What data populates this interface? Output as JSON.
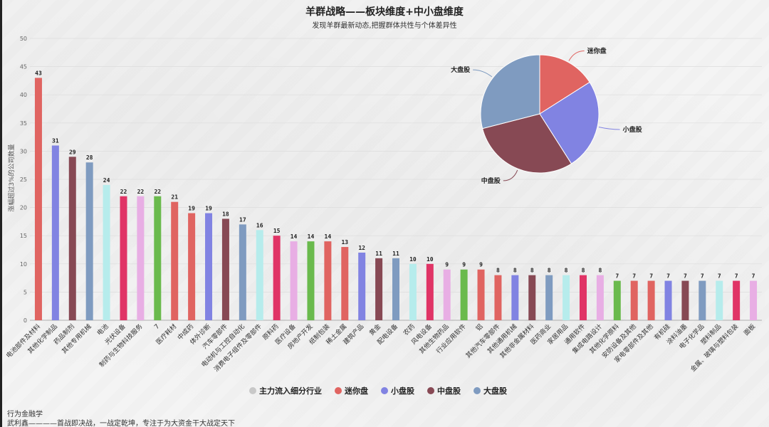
{
  "colors": {
    "inflow_gray": "#c8c8c8",
    "mini_red": "#e06461",
    "small_blue": "#8183e2",
    "mid_maroon": "#874954",
    "large_steel": "#7f9bc0",
    "cyan": "#b6ecec",
    "pink": "#e8aee4",
    "magenta": "#e03466",
    "green": "#6aba4d"
  },
  "chart_data": [
    {
      "type": "bar",
      "title": "羊群战略——板块维度+中小盘维度",
      "subtitle": "发现羊群最新动态,把握群体共性与个体差异性",
      "ylabel": "涨幅超过3%的公司数量",
      "ylim": [
        0,
        50
      ],
      "yticks": [
        0,
        5,
        10,
        15,
        20,
        25,
        30,
        35,
        40,
        45,
        50
      ],
      "grid": true,
      "categories": [
        "电池部件及材料",
        "其他化学制品",
        "药品制剂",
        "其他专用机械",
        "电池",
        "光伏设备",
        "制药与生物科技服务",
        "7",
        "医疗耗材",
        "中成药",
        "体外诊断",
        "汽车零部件",
        "电动机与工控自动化",
        "消费电子组件及零部件",
        "原料药",
        "医疗设备",
        "房地产开发",
        "纸制包装",
        "稀土金属",
        "建筑产品",
        "黄金",
        "配电设备",
        "农药",
        "风电设备",
        "其他生物药品",
        "行业应用软件",
        "铝",
        "其他汽车零部件",
        "其他通用机械",
        "其他非金属材料",
        "医药商业",
        "家居用品",
        "通用软件",
        "集成电路设计",
        "其他化学原料",
        "安防设备及其他",
        "家电零部件及其他",
        "有机硅",
        "涂料油墨",
        "电子化学品",
        "塑料制品",
        "金属、玻璃与塑料包装",
        "面板"
      ],
      "values": [
        43,
        31,
        29,
        28,
        24,
        22,
        22,
        22,
        21,
        19,
        19,
        18,
        17,
        16,
        15,
        14,
        14,
        14,
        13,
        12,
        11,
        11,
        10,
        10,
        9,
        9,
        9,
        8,
        8,
        8,
        8,
        8,
        8,
        8,
        7,
        7,
        7,
        7,
        7,
        7,
        7,
        7,
        7
      ],
      "bar_colors": [
        "mini_red",
        "small_blue",
        "mid_maroon",
        "large_steel",
        "cyan",
        "magenta",
        "pink",
        "green",
        "mini_red",
        "mini_red",
        "small_blue",
        "mid_maroon",
        "large_steel",
        "cyan",
        "magenta",
        "pink",
        "green",
        "mini_red",
        "mini_red",
        "small_blue",
        "mid_maroon",
        "large_steel",
        "cyan",
        "magenta",
        "pink",
        "green",
        "mini_red",
        "mini_red",
        "small_blue",
        "mid_maroon",
        "large_steel",
        "cyan",
        "magenta",
        "pink",
        "green",
        "mini_red",
        "mini_red",
        "small_blue",
        "mid_maroon",
        "large_steel",
        "cyan",
        "magenta",
        "pink"
      ],
      "legend": {
        "placement": "bottom-center",
        "entries": [
          {
            "label": "主力流入细分行业",
            "color": "inflow_gray"
          },
          {
            "label": "迷你盘",
            "color": "mini_red"
          },
          {
            "label": "小盘股",
            "color": "small_blue"
          },
          {
            "label": "中盘股",
            "color": "mid_maroon"
          },
          {
            "label": "大盘股",
            "color": "large_steel"
          }
        ]
      }
    },
    {
      "type": "pie",
      "placement": "top-right",
      "slices": [
        {
          "label": "迷你盘",
          "value": 16,
          "color": "mini_red"
        },
        {
          "label": "小盘股",
          "value": 25,
          "color": "small_blue"
        },
        {
          "label": "中盘股",
          "value": 30,
          "color": "mid_maroon"
        },
        {
          "label": "大盘股",
          "value": 29,
          "color": "large_steel"
        }
      ]
    }
  ],
  "footer": {
    "line1": "行为金融学",
    "line2": "武利鑫————首战即决战，一战定乾坤，专注于为大资金干大战定天下"
  }
}
